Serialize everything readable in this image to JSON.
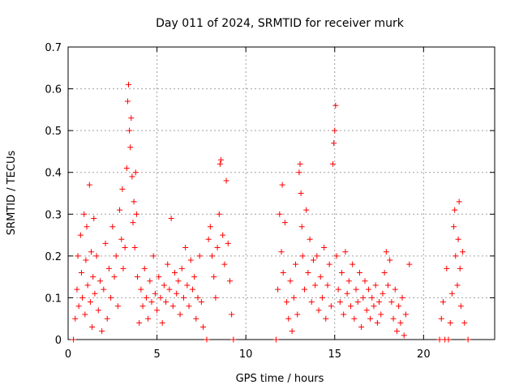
{
  "chart_data": {
    "type": "scatter",
    "title": "Day 011 of 2024, SRMTID for receiver murk",
    "xlabel": "GPS time / hours",
    "ylabel": "SRMTID / TECUs",
    "xlim": [
      0,
      24
    ],
    "ylim": [
      0,
      0.7
    ],
    "grid": true,
    "x_ticks": [
      0,
      5,
      10,
      15,
      20
    ],
    "y_ticks": [
      0,
      0.1,
      0.2,
      0.3,
      0.4,
      0.5,
      0.6,
      0.7
    ],
    "marker": "+",
    "color": "#ff0000",
    "series": [
      {
        "name": "SRMTID",
        "points": [
          [
            0.3,
            0.0
          ],
          [
            0.4,
            0.05
          ],
          [
            0.5,
            0.12
          ],
          [
            0.55,
            0.2
          ],
          [
            0.6,
            0.08
          ],
          [
            0.7,
            0.25
          ],
          [
            0.75,
            0.16
          ],
          [
            0.8,
            0.1
          ],
          [
            0.9,
            0.3
          ],
          [
            0.95,
            0.06
          ],
          [
            1.0,
            0.19
          ],
          [
            1.05,
            0.27
          ],
          [
            1.1,
            0.13
          ],
          [
            1.2,
            0.37
          ],
          [
            1.25,
            0.09
          ],
          [
            1.3,
            0.21
          ],
          [
            1.35,
            0.03
          ],
          [
            1.4,
            0.15
          ],
          [
            1.45,
            0.29
          ],
          [
            1.5,
            0.11
          ],
          [
            1.6,
            0.2
          ],
          [
            1.7,
            0.07
          ],
          [
            1.8,
            0.14
          ],
          [
            1.9,
            0.02
          ],
          [
            2.0,
            0.12
          ],
          [
            2.1,
            0.23
          ],
          [
            2.2,
            0.05
          ],
          [
            2.3,
            0.17
          ],
          [
            2.4,
            0.1
          ],
          [
            2.5,
            0.27
          ],
          [
            2.6,
            0.15
          ],
          [
            2.7,
            0.2
          ],
          [
            2.8,
            0.08
          ],
          [
            2.9,
            0.31
          ],
          [
            3.0,
            0.24
          ],
          [
            3.05,
            0.36
          ],
          [
            3.1,
            0.17
          ],
          [
            3.2,
            0.22
          ],
          [
            3.3,
            0.41
          ],
          [
            3.35,
            0.57
          ],
          [
            3.4,
            0.61
          ],
          [
            3.45,
            0.5
          ],
          [
            3.5,
            0.46
          ],
          [
            3.55,
            0.53
          ],
          [
            3.6,
            0.39
          ],
          [
            3.65,
            0.28
          ],
          [
            3.7,
            0.33
          ],
          [
            3.75,
            0.22
          ],
          [
            3.8,
            0.4
          ],
          [
            3.85,
            0.3
          ],
          [
            3.9,
            0.15
          ],
          [
            4.0,
            0.04
          ],
          [
            4.1,
            0.12
          ],
          [
            4.2,
            0.08
          ],
          [
            4.3,
            0.17
          ],
          [
            4.4,
            0.1
          ],
          [
            4.5,
            0.05
          ],
          [
            4.6,
            0.14
          ],
          [
            4.7,
            0.09
          ],
          [
            4.8,
            0.2
          ],
          [
            4.9,
            0.11
          ],
          [
            5.0,
            0.07
          ],
          [
            5.1,
            0.15
          ],
          [
            5.2,
            0.1
          ],
          [
            5.3,
            0.04
          ],
          [
            5.4,
            0.13
          ],
          [
            5.5,
            0.09
          ],
          [
            5.6,
            0.18
          ],
          [
            5.7,
            0.12
          ],
          [
            5.8,
            0.29
          ],
          [
            5.9,
            0.08
          ],
          [
            6.0,
            0.16
          ],
          [
            6.1,
            0.11
          ],
          [
            6.2,
            0.14
          ],
          [
            6.3,
            0.06
          ],
          [
            6.4,
            0.17
          ],
          [
            6.5,
            0.1
          ],
          [
            6.6,
            0.22
          ],
          [
            6.7,
            0.13
          ],
          [
            6.8,
            0.08
          ],
          [
            6.9,
            0.19
          ],
          [
            7.0,
            0.12
          ],
          [
            7.1,
            0.15
          ],
          [
            7.2,
            0.05
          ],
          [
            7.3,
            0.1
          ],
          [
            7.4,
            0.2
          ],
          [
            7.5,
            0.09
          ],
          [
            7.6,
            0.03
          ],
          [
            7.8,
            0.0
          ],
          [
            7.9,
            0.24
          ],
          [
            8.0,
            0.27
          ],
          [
            8.1,
            0.2
          ],
          [
            8.2,
            0.15
          ],
          [
            8.3,
            0.1
          ],
          [
            8.4,
            0.22
          ],
          [
            8.5,
            0.3
          ],
          [
            8.55,
            0.42
          ],
          [
            8.6,
            0.43
          ],
          [
            8.7,
            0.25
          ],
          [
            8.8,
            0.18
          ],
          [
            8.9,
            0.38
          ],
          [
            9.0,
            0.23
          ],
          [
            9.1,
            0.14
          ],
          [
            9.2,
            0.06
          ],
          [
            9.3,
            0.0
          ],
          [
            11.7,
            0.0
          ],
          [
            11.8,
            0.12
          ],
          [
            11.9,
            0.3
          ],
          [
            12.0,
            0.21
          ],
          [
            12.05,
            0.37
          ],
          [
            12.1,
            0.16
          ],
          [
            12.2,
            0.28
          ],
          [
            12.3,
            0.09
          ],
          [
            12.4,
            0.05
          ],
          [
            12.5,
            0.14
          ],
          [
            12.6,
            0.02
          ],
          [
            12.7,
            0.1
          ],
          [
            12.8,
            0.18
          ],
          [
            12.9,
            0.06
          ],
          [
            13.0,
            0.4
          ],
          [
            13.05,
            0.42
          ],
          [
            13.1,
            0.35
          ],
          [
            13.15,
            0.27
          ],
          [
            13.2,
            0.2
          ],
          [
            13.3,
            0.12
          ],
          [
            13.4,
            0.31
          ],
          [
            13.5,
            0.16
          ],
          [
            13.6,
            0.24
          ],
          [
            13.7,
            0.09
          ],
          [
            13.8,
            0.19
          ],
          [
            13.9,
            0.13
          ],
          [
            14.0,
            0.2
          ],
          [
            14.1,
            0.07
          ],
          [
            14.2,
            0.15
          ],
          [
            14.3,
            0.1
          ],
          [
            14.4,
            0.22
          ],
          [
            14.5,
            0.05
          ],
          [
            14.6,
            0.13
          ],
          [
            14.7,
            0.18
          ],
          [
            14.8,
            0.08
          ],
          [
            14.9,
            0.42
          ],
          [
            14.95,
            0.47
          ],
          [
            15.0,
            0.5
          ],
          [
            15.05,
            0.56
          ],
          [
            15.1,
            0.2
          ],
          [
            15.2,
            0.12
          ],
          [
            15.3,
            0.09
          ],
          [
            15.4,
            0.16
          ],
          [
            15.5,
            0.06
          ],
          [
            15.6,
            0.21
          ],
          [
            15.7,
            0.11
          ],
          [
            15.8,
            0.14
          ],
          [
            15.9,
            0.08
          ],
          [
            16.0,
            0.18
          ],
          [
            16.1,
            0.05
          ],
          [
            16.2,
            0.12
          ],
          [
            16.3,
            0.09
          ],
          [
            16.4,
            0.16
          ],
          [
            16.5,
            0.03
          ],
          [
            16.6,
            0.1
          ],
          [
            16.7,
            0.14
          ],
          [
            16.8,
            0.07
          ],
          [
            16.9,
            0.12
          ],
          [
            17.0,
            0.05
          ],
          [
            17.1,
            0.1
          ],
          [
            17.2,
            0.08
          ],
          [
            17.3,
            0.13
          ],
          [
            17.4,
            0.04
          ],
          [
            17.5,
            0.09
          ],
          [
            17.6,
            0.06
          ],
          [
            17.7,
            0.11
          ],
          [
            17.8,
            0.16
          ],
          [
            17.9,
            0.21
          ],
          [
            18.0,
            0.13
          ],
          [
            18.1,
            0.19
          ],
          [
            18.2,
            0.09
          ],
          [
            18.3,
            0.05
          ],
          [
            18.4,
            0.12
          ],
          [
            18.5,
            0.02
          ],
          [
            18.6,
            0.08
          ],
          [
            18.7,
            0.04
          ],
          [
            18.8,
            0.1
          ],
          [
            18.9,
            0.01
          ],
          [
            19.0,
            0.06
          ],
          [
            19.2,
            0.18
          ],
          [
            20.9,
            0.0
          ],
          [
            21.0,
            0.05
          ],
          [
            21.1,
            0.09
          ],
          [
            21.2,
            0.0
          ],
          [
            21.3,
            0.17
          ],
          [
            21.4,
            0.0
          ],
          [
            21.5,
            0.04
          ],
          [
            21.6,
            0.11
          ],
          [
            21.7,
            0.27
          ],
          [
            21.75,
            0.31
          ],
          [
            21.8,
            0.2
          ],
          [
            21.9,
            0.13
          ],
          [
            21.95,
            0.24
          ],
          [
            22.0,
            0.33
          ],
          [
            22.05,
            0.17
          ],
          [
            22.1,
            0.08
          ],
          [
            22.2,
            0.21
          ],
          [
            22.3,
            0.04
          ],
          [
            22.5,
            0.0
          ]
        ]
      }
    ]
  }
}
